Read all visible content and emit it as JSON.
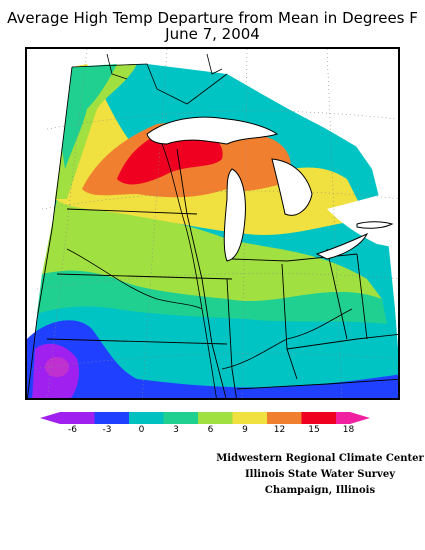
{
  "title": "Average High Temp Departure from Mean in Degrees F",
  "subtitle": "June 7, 2004",
  "legend": {
    "colors": [
      "#a020f0",
      "#2040ff",
      "#00c0c0",
      "#20d090",
      "#a0e040",
      "#f0e040",
      "#f08030",
      "#f00020",
      "#f020a0"
    ],
    "tick_labels": [
      "-6",
      "-3",
      "0",
      "3",
      "6",
      "9",
      "12",
      "15",
      "18"
    ]
  },
  "credits": {
    "line1": "Midwestern Regional Climate Center",
    "line2": "Illinois State Water Survey",
    "line3": "Champaign, Illinois"
  }
}
